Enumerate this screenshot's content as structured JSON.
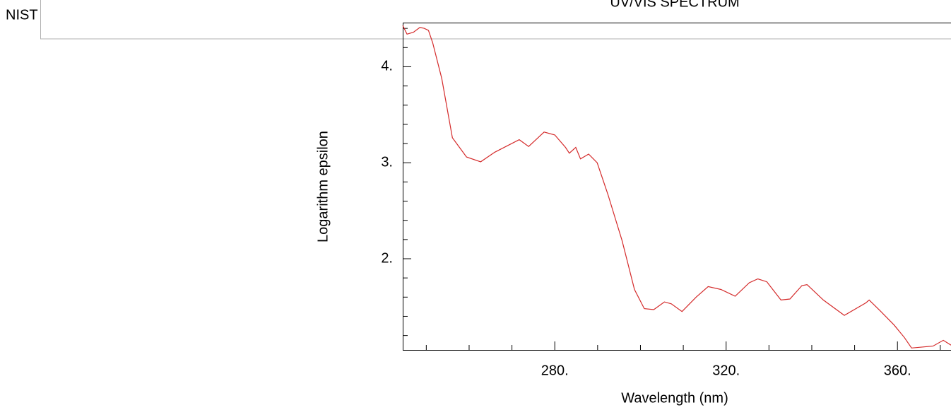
{
  "header": {
    "source": "NIST"
  },
  "chart_data": {
    "type": "line",
    "title": "UV/VIS SPECTRUM",
    "x_label": "Wavelength (nm)",
    "y_label": "Logarithm epsilon",
    "x": [
      244.5,
      245.5,
      247,
      248.5,
      249.5,
      250.5,
      251.5,
      253.6,
      256.1,
      259.4,
      262.7,
      266,
      271.7,
      273.9,
      277.5,
      280,
      282.5,
      283.4,
      284.9,
      286,
      287.9,
      289.9,
      292.4,
      295.7,
      298.6,
      300.9,
      303.1,
      305.6,
      307.2,
      309.7,
      313,
      315.8,
      318.8,
      322.1,
      325.4,
      327.4,
      329.5,
      332.8,
      334.9,
      337.7,
      338.9,
      342.7,
      347.6,
      352.6,
      353.4,
      355.9,
      359.2,
      361.6,
      363.3,
      368.3,
      370.7,
      372.5
    ],
    "series": [
      {
        "name": "Logarithm epsilon",
        "color": "#d42a2a",
        "values": [
          4.43,
          4.34,
          4.36,
          4.41,
          4.4,
          4.38,
          4.25,
          3.88,
          3.26,
          3.06,
          3.01,
          3.11,
          3.24,
          3.17,
          3.32,
          3.29,
          3.16,
          3.1,
          3.16,
          3.04,
          3.09,
          3.0,
          2.67,
          2.19,
          1.68,
          1.48,
          1.47,
          1.55,
          1.53,
          1.45,
          1.6,
          1.71,
          1.68,
          1.61,
          1.75,
          1.79,
          1.76,
          1.57,
          1.58,
          1.72,
          1.73,
          1.57,
          1.41,
          1.54,
          1.57,
          1.46,
          1.31,
          1.18,
          1.07,
          1.09,
          1.15,
          1.1
        ]
      }
    ],
    "xlim": [
      244.5,
      372.5
    ],
    "ylim": [
      1.05,
      4.46
    ],
    "xticks": [
      {
        "value": 280,
        "label": "280."
      },
      {
        "value": 320,
        "label": "320."
      },
      {
        "value": 360,
        "label": "360."
      }
    ],
    "yticks": [
      {
        "value": 2,
        "label": "2."
      },
      {
        "value": 3,
        "label": "3."
      },
      {
        "value": 4,
        "label": "4."
      }
    ],
    "xminorticks": [
      250,
      260,
      270,
      290,
      300,
      310,
      330,
      340,
      350,
      370
    ],
    "yminorticks": [
      1.2,
      1.4,
      1.6,
      1.8,
      2.2,
      2.4,
      2.6,
      2.8,
      3.2,
      3.4,
      3.6,
      3.8,
      4.2,
      4.4
    ],
    "grid": false
  }
}
